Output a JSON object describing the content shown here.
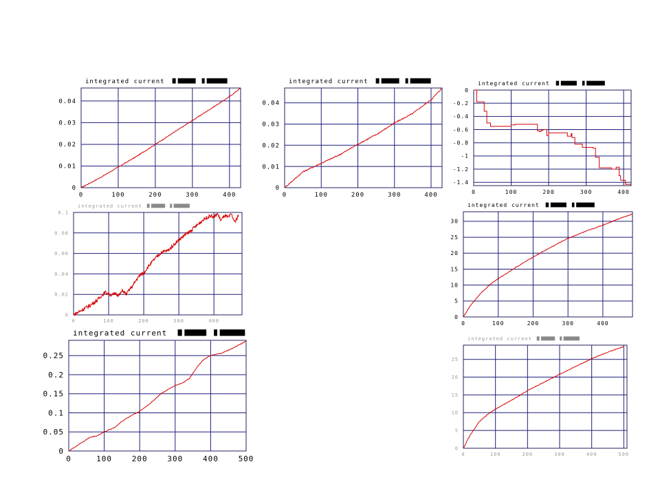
{
  "chart_data": [
    {
      "id": "c1",
      "type": "line",
      "title": "integrated current",
      "x_ticks": [
        0,
        100,
        200,
        300,
        400
      ],
      "x_tick_labels": [
        "0",
        "100",
        "200",
        "300",
        "400"
      ],
      "y_ticks": [
        0,
        0.01,
        0.02,
        0.03,
        0.04
      ],
      "y_tick_labels": [
        "0",
        "0.01",
        "0.02",
        "0.03",
        "0.04"
      ],
      "xlim": [
        0,
        430
      ],
      "ylim": [
        0,
        0.046
      ],
      "grid": true,
      "series": [
        {
          "color": "#d40000",
          "x": [
            0,
            50,
            100,
            150,
            200,
            250,
            300,
            350,
            400,
            430
          ],
          "y": [
            0,
            0.0045,
            0.0095,
            0.0145,
            0.02,
            0.0255,
            0.031,
            0.0365,
            0.042,
            0.046
          ],
          "noise": 0.0002,
          "style": "smooth"
        }
      ]
    },
    {
      "id": "c2",
      "type": "line",
      "title": "integrated current",
      "x_ticks": [
        0,
        100,
        200,
        300,
        400
      ],
      "x_tick_labels": [
        "0",
        "100",
        "200",
        "300",
        "400"
      ],
      "y_ticks": [
        0,
        0.01,
        0.02,
        0.03,
        0.04
      ],
      "y_tick_labels": [
        "0",
        "0.01",
        "0.02",
        "0.03",
        "0.04"
      ],
      "xlim": [
        0,
        430
      ],
      "ylim": [
        0,
        0.047
      ],
      "grid": true,
      "series": [
        {
          "color": "#d40000",
          "x": [
            0,
            50,
            100,
            150,
            200,
            250,
            300,
            350,
            400,
            430
          ],
          "y": [
            0,
            0.0075,
            0.0115,
            0.0155,
            0.0205,
            0.025,
            0.0305,
            0.035,
            0.0415,
            0.047
          ],
          "noise": 0.0003,
          "style": "smooth"
        }
      ]
    },
    {
      "id": "c3",
      "type": "line",
      "title": "integrated current",
      "x_ticks": [
        0,
        100,
        200,
        300,
        400
      ],
      "x_tick_labels": [
        "0",
        "100",
        "200",
        "300",
        "400"
      ],
      "y_ticks": [
        0,
        -0.2,
        -0.4,
        -0.6,
        -0.8,
        -1,
        -1.2,
        -1.4
      ],
      "y_tick_labels": [
        "0",
        "-0.2",
        "-0.4",
        "-0.6",
        "-0.8",
        "-1",
        "-1.2",
        "-1.4"
      ],
      "xlim": [
        0,
        420
      ],
      "ylim": [
        -1.45,
        0
      ],
      "grid": true,
      "series": [
        {
          "color": "#d40000",
          "style": "step",
          "x": [
            0,
            8,
            8,
            28,
            28,
            35,
            35,
            45,
            45,
            100,
            100,
            110,
            110,
            170,
            170,
            175,
            175,
            180,
            180,
            185,
            185,
            195,
            195,
            200,
            200,
            250,
            250,
            260,
            260,
            262,
            262,
            270,
            270,
            290,
            290,
            318,
            318,
            325,
            325,
            335,
            335,
            368,
            368,
            380,
            380,
            388,
            388,
            392,
            392,
            405,
            405,
            420
          ],
          "y": [
            0,
            0,
            -0.18,
            -0.18,
            -0.32,
            -0.32,
            -0.5,
            -0.5,
            -0.55,
            -0.55,
            -0.53,
            -0.53,
            -0.52,
            -0.52,
            -0.62,
            -0.62,
            -0.63,
            -0.63,
            -0.61,
            -0.61,
            -0.6,
            -0.6,
            -0.69,
            -0.69,
            -0.65,
            -0.65,
            -0.7,
            -0.7,
            -0.66,
            -0.66,
            -0.72,
            -0.72,
            -0.82,
            -0.82,
            -0.87,
            -0.87,
            -0.88,
            -0.88,
            -1.02,
            -1.02,
            -1.18,
            -1.18,
            -1.2,
            -1.2,
            -1.17,
            -1.17,
            -1.3,
            -1.3,
            -1.37,
            -1.37,
            -1.43,
            -1.43
          ]
        }
      ]
    },
    {
      "id": "c4",
      "type": "line",
      "title": "integrated current",
      "faint": true,
      "x_ticks": [
        0,
        100,
        200,
        300,
        400
      ],
      "x_tick_labels": [
        "0",
        "100",
        "200",
        "300",
        "400"
      ],
      "y_ticks": [
        0,
        0.02,
        0.04,
        0.06,
        0.08,
        0.1
      ],
      "y_tick_labels": [
        "0",
        "0.02",
        "0.04",
        "0.06",
        "0.08",
        "0.1"
      ],
      "xlim": [
        0,
        480
      ],
      "ylim": [
        0,
        0.1
      ],
      "grid": true,
      "series": [
        {
          "color": "#d40000",
          "x": [
            0,
            20,
            50,
            70,
            80,
            90,
            100,
            110,
            120,
            130,
            140,
            150,
            160,
            170,
            180,
            190,
            200,
            210,
            230,
            250,
            270,
            290,
            310,
            330,
            350,
            370,
            390,
            400,
            410,
            420,
            430,
            440,
            450,
            460,
            470
          ],
          "y": [
            0,
            0.004,
            0.01,
            0.015,
            0.019,
            0.022,
            0.021,
            0.019,
            0.021,
            0.019,
            0.024,
            0.02,
            0.025,
            0.029,
            0.035,
            0.039,
            0.041,
            0.046,
            0.054,
            0.061,
            0.063,
            0.07,
            0.076,
            0.081,
            0.087,
            0.093,
            0.097,
            0.095,
            0.099,
            0.092,
            0.097,
            0.095,
            0.098,
            0.09,
            0.098
          ],
          "noise": 0.0018,
          "style": "noisy"
        }
      ]
    },
    {
      "id": "c5",
      "type": "line",
      "title": "integrated current",
      "x_ticks": [
        0,
        100,
        200,
        300,
        400
      ],
      "x_tick_labels": [
        "0",
        "100",
        "200",
        "300",
        "400"
      ],
      "y_ticks": [
        0,
        5,
        10,
        15,
        20,
        25,
        30
      ],
      "y_tick_labels": [
        "0",
        "5",
        "10",
        "15",
        "20",
        "25",
        "30"
      ],
      "xlim": [
        0,
        485
      ],
      "ylim": [
        0,
        33
      ],
      "grid": true,
      "series": [
        {
          "color": "#d40000",
          "x": [
            0,
            20,
            50,
            80,
            100,
            150,
            200,
            250,
            300,
            350,
            400,
            450,
            485
          ],
          "y": [
            0,
            3.5,
            7.5,
            10.5,
            12,
            15.5,
            18.8,
            21.8,
            24.7,
            26.8,
            28.8,
            31,
            32.3
          ],
          "noise": 0.12,
          "style": "smooth"
        }
      ]
    },
    {
      "id": "c6",
      "type": "line",
      "title": "integrated current",
      "x_ticks": [
        0,
        100,
        200,
        300,
        400,
        500
      ],
      "x_tick_labels": [
        "0",
        "100",
        "200",
        "300",
        "400",
        "500"
      ],
      "y_ticks": [
        0,
        0.05,
        0.1,
        0.15,
        0.2,
        0.25
      ],
      "y_tick_labels": [
        "0",
        "0.05",
        "0.1",
        "0.15",
        "0.2",
        "0.25"
      ],
      "xlim": [
        0,
        500
      ],
      "ylim": [
        0,
        0.29
      ],
      "grid": true,
      "series": [
        {
          "color": "#d40000",
          "x": [
            0,
            30,
            60,
            80,
            100,
            130,
            150,
            180,
            200,
            230,
            260,
            300,
            320,
            340,
            360,
            380,
            400,
            430,
            460,
            500
          ],
          "y": [
            0,
            0.018,
            0.036,
            0.04,
            0.05,
            0.062,
            0.078,
            0.095,
            0.104,
            0.125,
            0.15,
            0.172,
            0.178,
            0.19,
            0.218,
            0.24,
            0.25,
            0.256,
            0.268,
            0.288
          ],
          "noise": 0.001,
          "style": "smooth"
        }
      ]
    },
    {
      "id": "c7",
      "type": "line",
      "title": "integrated current",
      "faint": true,
      "x_ticks": [
        0,
        100,
        200,
        300,
        400,
        500
      ],
      "x_tick_labels": [
        "0",
        "100",
        "200",
        "300",
        "400",
        "500"
      ],
      "y_ticks": [
        0,
        5,
        10,
        15,
        20,
        25
      ],
      "y_tick_labels": [
        "0",
        "5",
        "10",
        "15",
        "20",
        "25"
      ],
      "xlim": [
        0,
        510
      ],
      "ylim": [
        0,
        29
      ],
      "grid": true,
      "series": [
        {
          "color": "#d40000",
          "x": [
            0,
            20,
            50,
            80,
            100,
            150,
            200,
            250,
            300,
            350,
            400,
            450,
            500
          ],
          "y": [
            0,
            3.5,
            7.5,
            9.8,
            11,
            13.5,
            16.2,
            18.5,
            20.8,
            23,
            25.2,
            27,
            28.6
          ],
          "noise": 0.1,
          "style": "smooth"
        }
      ]
    }
  ]
}
